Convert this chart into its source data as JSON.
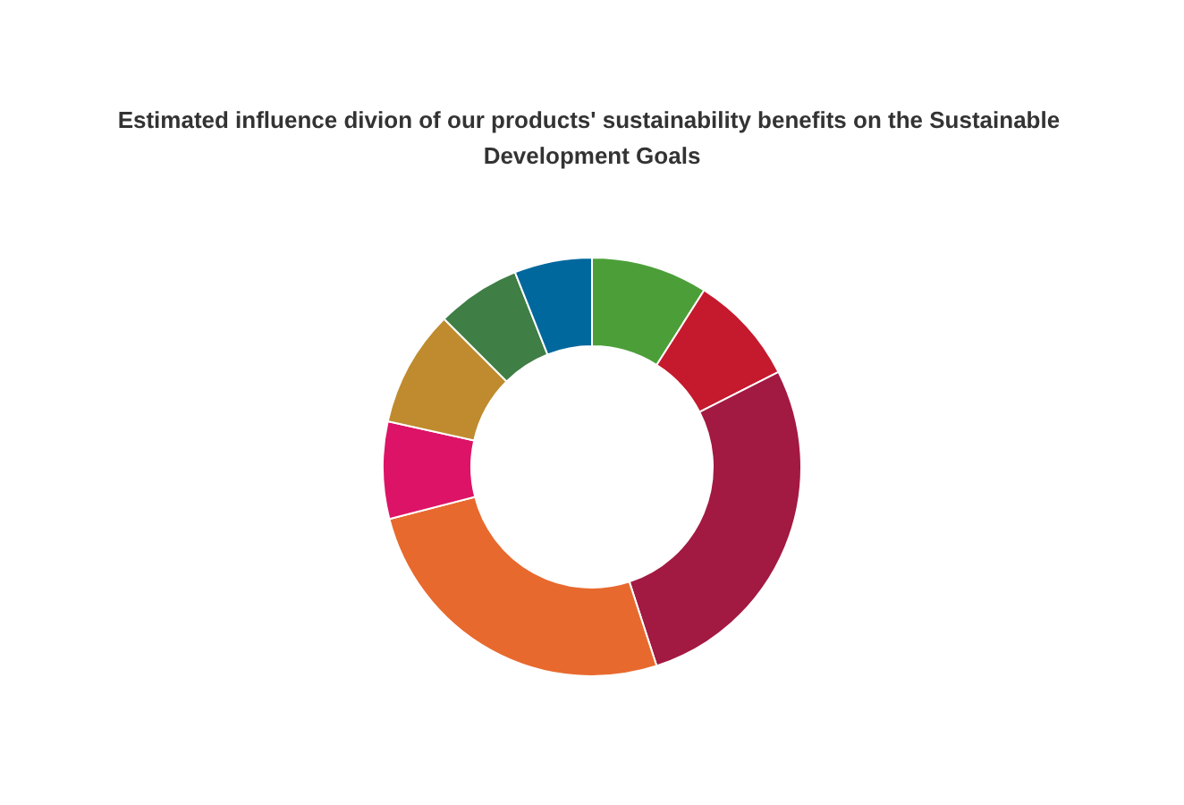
{
  "chart_data": {
    "type": "donut",
    "title": "Estimated influence divion of our products' sustainability benefits on the Sustainable Development Goals",
    "categories": [
      null,
      null,
      null,
      null,
      null,
      null,
      null,
      null
    ],
    "values": [
      9,
      8.5,
      27.5,
      26,
      7.5,
      9,
      6.5,
      6
    ],
    "colors": [
      "#4c9f38",
      "#c5192d",
      "#a21942",
      "#e8692e",
      "#dd1367",
      "#bf8b2e",
      "#3f7e44",
      "#00689d"
    ]
  }
}
